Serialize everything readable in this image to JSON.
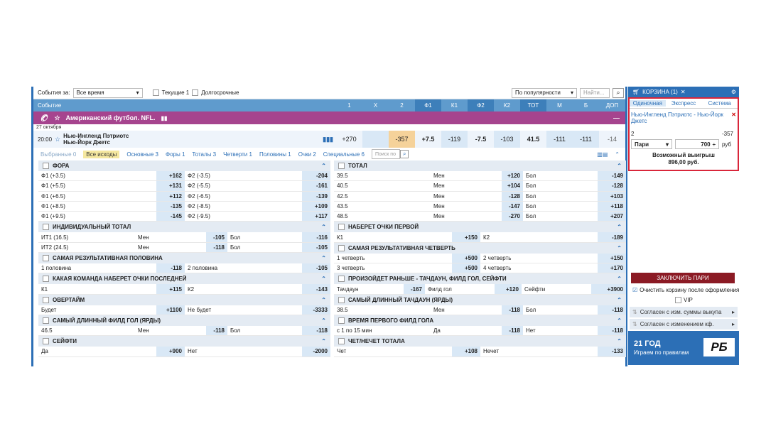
{
  "filter": {
    "events_for_label": "События за:",
    "events_for_value": "Все время",
    "current_label": "Текущие 1",
    "longterm_label": "Долгосрочные",
    "sort_value": "По популярности",
    "search_placeholder": "Найти..."
  },
  "columns": {
    "event": "Событие",
    "headers": [
      "1",
      "X",
      "2",
      "Ф1",
      "К1",
      "Ф2",
      "К2",
      "ТОТ",
      "М",
      "Б",
      "ДОП"
    ]
  },
  "sport": {
    "title": "Американский футбол. NFL."
  },
  "date": "27 октября",
  "match": {
    "time": "20:00",
    "team1": "Нью-Ингленд Пэтриотс",
    "team2": "Нью-Йорк Джетс",
    "odds": [
      "+270",
      "",
      "-357",
      "+7.5",
      "-119",
      "-7.5",
      "-103",
      "41.5",
      "-111",
      "-111",
      "-14"
    ]
  },
  "tabs": [
    {
      "label": "Выбранные 0"
    },
    {
      "label": "Все исходы"
    },
    {
      "label": "Основные 3"
    },
    {
      "label": "Форы 1"
    },
    {
      "label": "Тоталы 3"
    },
    {
      "label": "Четверти 1"
    },
    {
      "label": "Половины 1"
    },
    {
      "label": "Очки 2"
    },
    {
      "label": "Специальные 6"
    }
  ],
  "tab_search_placeholder": "Поиск по",
  "left_markets": [
    {
      "title": "ФОРА",
      "rows": [
        [
          "Ф1 (+3.5)",
          "+162",
          "Ф2 (-3.5)",
          "-204"
        ],
        [
          "Ф1 (+5.5)",
          "+131",
          "Ф2 (-5.5)",
          "-161"
        ],
        [
          "Ф1 (+6.5)",
          "+112",
          "Ф2 (-6.5)",
          "-139"
        ],
        [
          "Ф1 (+8.5)",
          "-135",
          "Ф2 (-8.5)",
          "+109"
        ],
        [
          "Ф1 (+9.5)",
          "-145",
          "Ф2 (-9.5)",
          "+117"
        ]
      ]
    },
    {
      "title": "ИНДИВИДУАЛЬНЫЙ ТОТАЛ",
      "rows3": [
        [
          "ИТ1 (16.5)",
          "Мен",
          "-105",
          "Бол",
          "-116"
        ],
        [
          "ИТ2 (24.5)",
          "Мен",
          "-118",
          "Бол",
          "-105"
        ]
      ]
    },
    {
      "title": "САМАЯ РЕЗУЛЬТАТИВНАЯ ПОЛОВИНА",
      "rows": [
        [
          "1 половина",
          "-118",
          "2 половина",
          "-105"
        ]
      ]
    },
    {
      "title": "КАКАЯ КОМАНДА НАБЕРЕТ ОЧКИ ПОСЛЕДНЕЙ",
      "rows": [
        [
          "К1",
          "+115",
          "К2",
          "-143"
        ]
      ]
    },
    {
      "title": "ОВЕРТАЙМ",
      "rows": [
        [
          "Будет",
          "+1100",
          "Не будет",
          "-3333"
        ]
      ]
    },
    {
      "title": "САМЫЙ ДЛИННЫЙ ФИЛД ГОЛ (ЯРДЫ)",
      "rows3": [
        [
          "46.5",
          "Мен",
          "-118",
          "Бол",
          "-118"
        ]
      ]
    },
    {
      "title": "СЕЙФТИ",
      "rows": [
        [
          "Да",
          "+900",
          "Нет",
          "-2000"
        ]
      ]
    }
  ],
  "right_markets": [
    {
      "title": "ТОТАЛ",
      "rows3": [
        [
          "39.5",
          "Мен",
          "+120",
          "Бол",
          "-149"
        ],
        [
          "40.5",
          "Мен",
          "+104",
          "Бол",
          "-128"
        ],
        [
          "42.5",
          "Мен",
          "-128",
          "Бол",
          "+103"
        ],
        [
          "43.5",
          "Мен",
          "-147",
          "Бол",
          "+118"
        ],
        [
          "48.5",
          "Мен",
          "-270",
          "Бол",
          "+207"
        ]
      ]
    },
    {
      "title": "НАБЕРЕТ ОЧКИ ПЕРВОЙ",
      "rows": [
        [
          "К1",
          "+150",
          "К2",
          "-189"
        ]
      ]
    },
    {
      "title": "САМАЯ РЕЗУЛЬТАТИВНАЯ ЧЕТВЕРТЬ",
      "rows": [
        [
          "1 четверть",
          "+500",
          "2 четверть",
          "+150"
        ],
        [
          "3 четверть",
          "+500",
          "4 четверть",
          "+170"
        ]
      ]
    },
    {
      "title": "ПРОИЗОЙДЕТ РАНЬШЕ - ТАЧДАУН, ФИЛД ГОЛ, СЕЙФТИ",
      "rows3": [
        [
          "Тачдаун",
          "-167",
          "Филд гол",
          "+120",
          "Сейфти",
          "+3900"
        ]
      ],
      "wide": true
    },
    {
      "title": "САМЫЙ ДЛИННЫЙ ТАЧДАУН (ЯРДЫ)",
      "rows3": [
        [
          "38.5",
          "Мен",
          "-118",
          "Бол",
          "-118"
        ]
      ]
    },
    {
      "title": "ВРЕМЯ ПЕРВОГО ФИЛД ГОЛА",
      "rows3": [
        [
          "с 1 по 15 мин",
          "Да",
          "-118",
          "Нет",
          "-118"
        ]
      ]
    },
    {
      "title": "ЧЕТ/НЕЧЕТ ТОТАЛА",
      "rows": [
        [
          "Чет",
          "+108",
          "Нечет",
          "-133"
        ]
      ]
    }
  ],
  "cart": {
    "title": "КОРЗИНА (1)",
    "tabs": [
      "Одиночная",
      "Экспресс",
      "Система"
    ],
    "event": "Нью-Ингленд Пэтриотс - Нью-Йорк Джетс",
    "outcome": "2",
    "odd": "-357",
    "bet_type": "Пари",
    "amount": "700",
    "currency": "руб",
    "win_label": "Возможный выигрыш",
    "win_value": "896,00 руб.",
    "place_bet": "ЗАКЛЮЧИТЬ ПАРИ",
    "clear_label": "Очистить корзину после оформления",
    "vip_label": "VIP",
    "agree1": "Согласен с изм. суммы выкупа",
    "agree2": "Согласен с изменением кф."
  },
  "banner": {
    "line1": "21 ГОД",
    "line2": "Играем по правилам",
    "logo": "РБ"
  },
  "colors": {
    "accent": "#2c6fb6",
    "sport": "#a6448e",
    "highlight": "#f5d29a",
    "odd_bg": "#d9e8f6",
    "slip_border": "#d9263a",
    "place_bet": "#8b1a24"
  }
}
